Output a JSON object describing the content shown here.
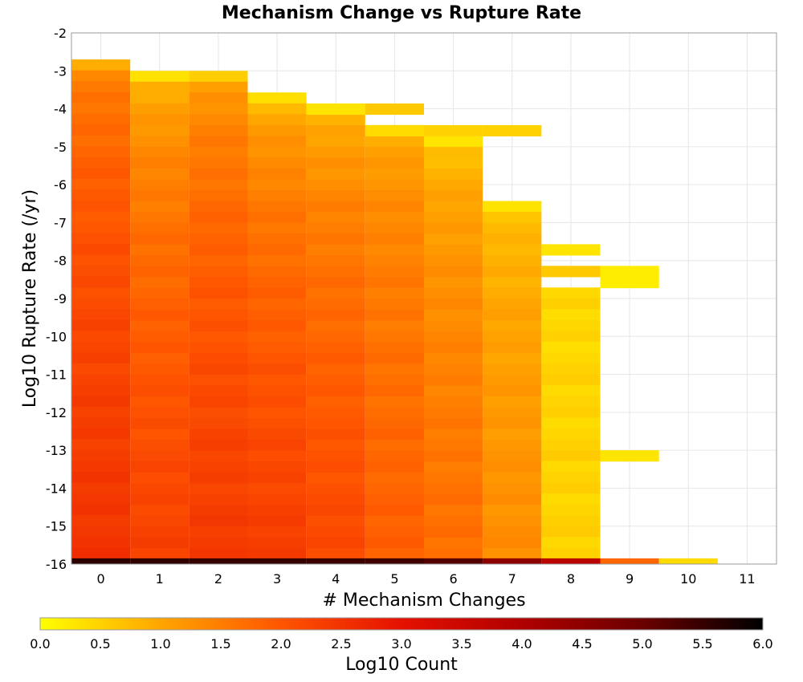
{
  "chart_data": {
    "type": "heatmap",
    "title": "Mechanism Change vs Rupture Rate",
    "xlabel": "# Mechanism Changes",
    "ylabel": "Log10 Rupture Rate (/yr)",
    "x_categories": [
      0,
      1,
      2,
      3,
      4,
      5,
      6,
      7,
      8,
      9,
      10,
      11
    ],
    "x_ticks": [
      "0",
      "1",
      "2",
      "3",
      "4",
      "5",
      "6",
      "7",
      "8",
      "9",
      "10",
      "11"
    ],
    "y_ticks": [
      "-2",
      "-3",
      "-4",
      "-5",
      "-6",
      "-7",
      "-8",
      "-9",
      "-10",
      "-11",
      "-12",
      "-13",
      "-14",
      "-15",
      "-16"
    ],
    "ylim": [
      -16,
      -2
    ],
    "xlim": [
      -0.5,
      11.5
    ],
    "y_bin_width": 0.286,
    "colorbar": {
      "label": "Log10 Count",
      "range": [
        0,
        6
      ],
      "ticks": [
        "0.0",
        "0.5",
        "1.0",
        "1.5",
        "2.0",
        "2.5",
        "3.0",
        "3.5",
        "4.0",
        "4.5",
        "5.0",
        "5.5",
        "6.0"
      ],
      "colors": [
        "#ffff00",
        "#ffa500",
        "#ff5500",
        "#e51100",
        "#b00000",
        "#6a0000",
        "#000000"
      ]
    },
    "columns": [
      {
        "x": 0,
        "top": -2.7,
        "bottom": -15.85,
        "value_top": 1.0,
        "value_bottom": 2.5
      },
      {
        "x": 1,
        "top": -3.0,
        "bottom": -15.85,
        "value_top": 0.3,
        "value_bottom": 2.3
      },
      {
        "x": 2,
        "top": -3.0,
        "bottom": -15.85,
        "value_top": 0.6,
        "value_bottom": 2.4
      },
      {
        "x": 3,
        "top": -3.57,
        "bottom": -15.85,
        "value_top": 0.3,
        "value_bottom": 2.35
      },
      {
        "x": 4,
        "top": -3.86,
        "bottom": -15.85,
        "value_top": 0.3,
        "value_bottom": 2.2
      },
      {
        "x": 5,
        "top": -4.43,
        "bottom": -15.85,
        "value_top": 0.6,
        "value_bottom": 1.9
      },
      {
        "x": 6,
        "top": -4.72,
        "bottom": -15.85,
        "value_top": 0.3,
        "value_bottom": 1.7
      },
      {
        "x": 7,
        "top": -6.43,
        "bottom": -15.85,
        "value_top": 0.4,
        "value_bottom": 1.3
      },
      {
        "x": 8,
        "top": -8.71,
        "bottom": -15.85,
        "value_top": 0.4,
        "value_bottom": 0.5
      }
    ],
    "extra_cells": [
      {
        "x": 4,
        "y": -3.86,
        "value": 0.3
      },
      {
        "x": 5,
        "y": -3.86,
        "value": 0.6
      },
      {
        "x": 5,
        "y": -4.43,
        "value": 0.4
      },
      {
        "x": 6,
        "y": -4.43,
        "value": 0.5
      },
      {
        "x": 7,
        "y": -4.43,
        "value": 0.5
      },
      {
        "x": 8,
        "y": -7.57,
        "value": 0.3
      },
      {
        "x": 8,
        "y": -8.14,
        "value": 0.6
      },
      {
        "x": 9,
        "y": -8.14,
        "value": 0.2
      },
      {
        "x": 9,
        "y": -8.43,
        "value": 0.2
      },
      {
        "x": 9,
        "y": -13.0,
        "value": 0.3
      }
    ],
    "bottom_row": {
      "y": -16.0,
      "values": [
        5.6,
        5.55,
        5.5,
        5.5,
        5.45,
        5.4,
        5.2,
        4.5,
        3.8,
        1.8,
        0.4,
        null
      ]
    }
  }
}
